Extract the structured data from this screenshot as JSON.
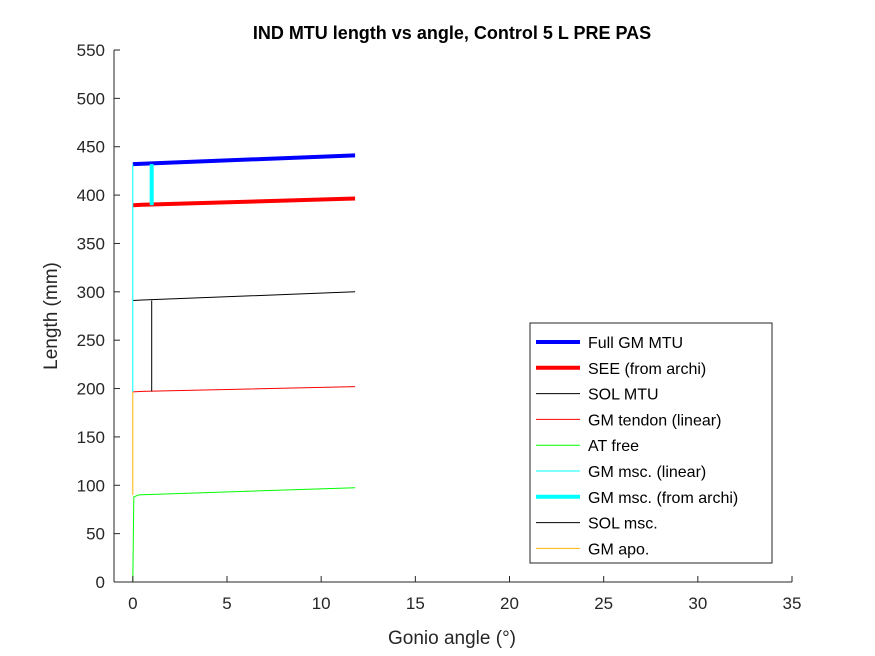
{
  "chart_data": {
    "type": "line",
    "title": "IND MTU length vs angle, Control 5 L PRE PAS",
    "xlabel": "Gonio angle (°)",
    "ylabel": "Length (mm)",
    "xlim": [
      -1,
      35
    ],
    "ylim": [
      0,
      550
    ],
    "xticks": [
      0,
      5,
      10,
      15,
      20,
      25,
      30,
      35
    ],
    "yticks": [
      0,
      50,
      100,
      150,
      200,
      250,
      300,
      350,
      400,
      450,
      500,
      550
    ],
    "grid": false,
    "legend_position": "lower-right",
    "series": [
      {
        "name": "Full GM MTU",
        "color": "#0000ff",
        "width": 4,
        "points": [
          [
            0,
            432
          ],
          [
            0.5,
            432.5
          ],
          [
            11.8,
            441
          ]
        ]
      },
      {
        "name": "SEE (from archi)",
        "color": "#ff0000",
        "width": 4,
        "points": [
          [
            0,
            389.5
          ],
          [
            0.5,
            390
          ],
          [
            11.8,
            396.5
          ]
        ]
      },
      {
        "name": "SOL MTU",
        "color": "#000000",
        "width": 1,
        "points": [
          [
            0,
            291
          ],
          [
            0.5,
            291.5
          ],
          [
            11.8,
            300
          ]
        ]
      },
      {
        "name": "GM tendon (linear)",
        "color": "#ff0000",
        "width": 1,
        "points": [
          [
            0,
            196.5
          ],
          [
            0.5,
            197
          ],
          [
            11.8,
            202
          ]
        ]
      },
      {
        "name": "AT free",
        "color": "#00ff00",
        "width": 1,
        "points": [
          [
            0,
            0
          ],
          [
            0.05,
            88
          ],
          [
            0.3,
            90
          ],
          [
            11.8,
            97.5
          ]
        ]
      },
      {
        "name": "GM msc. (linear)",
        "color": "#00ffff",
        "width": 1,
        "points": [
          [
            0,
            196.5
          ],
          [
            0,
            432
          ]
        ]
      },
      {
        "name": "GM msc. (from archi)",
        "color": "#00ffff",
        "width": 4,
        "points": [
          [
            1,
            389.5
          ],
          [
            1,
            432
          ]
        ]
      },
      {
        "name": "SOL msc.",
        "color": "#000000",
        "width": 1,
        "points": [
          [
            1,
            197
          ],
          [
            1,
            291
          ]
        ]
      },
      {
        "name": "GM apo.",
        "color": "#ffb300",
        "width": 1,
        "points": [
          [
            0,
            90
          ],
          [
            0,
            196.5
          ]
        ]
      }
    ]
  }
}
